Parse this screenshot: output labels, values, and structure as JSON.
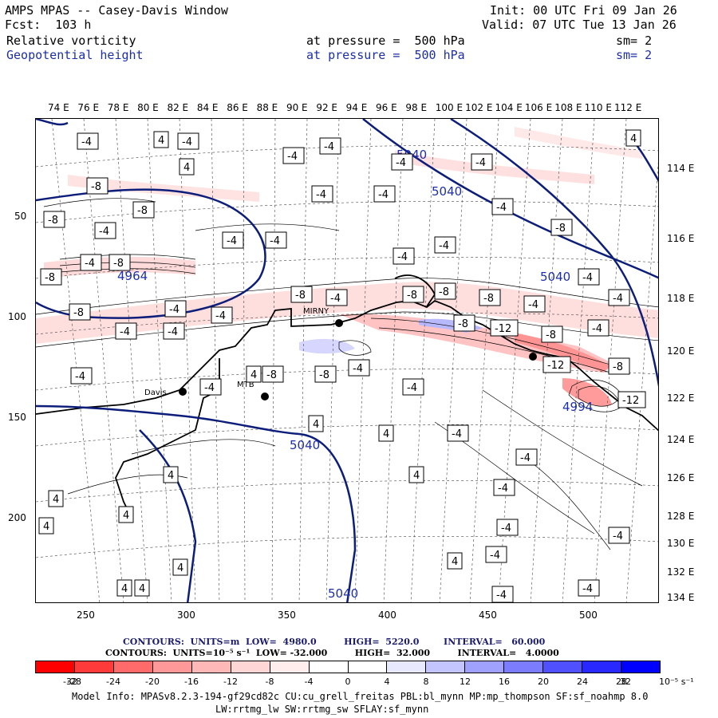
{
  "header": {
    "title_line": "AMPS MPAS -- Casey-Davis Window",
    "forecast_line": "Fcst:  103 h",
    "init_line": "Init: 00 UTC Fri 09 Jan 26",
    "valid_line": "Valid: 07 UTC Tue 13 Jan 26",
    "field1_name": "Relative vorticity",
    "field1_level": "at pressure =  500 hPa",
    "field1_sm": "sm= 2",
    "field2_name": "Geopotential height",
    "field2_level": "at pressure =  500 hPa",
    "field2_sm": "sm= 2"
  },
  "map": {
    "top_longitudes": [
      "74 E",
      "76 E",
      "78 E",
      "80 E",
      "82 E",
      "84 E",
      "86 E",
      "88 E",
      "90 E",
      "92 E",
      "94 E",
      "96 E",
      "98 E",
      "100 E",
      "102 E",
      "104 E",
      "106 E",
      "108 E",
      "110 E",
      "112 E"
    ],
    "right_longitudes": [
      "114 E",
      "116 E",
      "118 E",
      "120 E",
      "122 E",
      "124 E",
      "126 E",
      "128 E",
      "130 E",
      "132 E",
      "134 E"
    ],
    "left_grid_ticks": [
      "50",
      "100",
      "150",
      "200"
    ],
    "bottom_grid_ticks": [
      "250",
      "300",
      "350",
      "400",
      "450",
      "500"
    ],
    "station_labels": [
      "Davis",
      "MTB",
      "MIRNY"
    ],
    "height_labels": [
      "5040",
      "5040",
      "5040",
      "4964",
      "5040",
      "4994",
      "5040"
    ],
    "vorticity_labels": [
      "-4",
      "-8",
      "-12",
      "4"
    ]
  },
  "legend": {
    "contours_height": "CONTOURS:  UNITS=m  LOW=  4980.0         HIGH=  5220.0        INTERVAL=   60.000",
    "contours_vort": "CONTOURS:  UNITS=10⁻⁵ s⁻¹  LOW= -32.000         HIGH=  32.000         INTERVAL=   4.0000",
    "colorbar_colors": [
      "#ff0000",
      "#ff3a3a",
      "#ff6b6b",
      "#ff9999",
      "#ffb8b8",
      "#ffd6d6",
      "#ffecec",
      "#ffffff",
      "#ffffff",
      "#e8e8ff",
      "#c4c4ff",
      "#a0a0ff",
      "#7c7cff",
      "#5050ff",
      "#2828ff",
      "#0000ff"
    ],
    "colorbar_ticks": [
      "-32",
      "-28",
      "-24",
      "-20",
      "-16",
      "-12",
      "-8",
      "-4",
      "0",
      "4",
      "8",
      "12",
      "16",
      "20",
      "24",
      "28",
      "32"
    ],
    "colorbar_units": "10⁻⁵ s⁻¹"
  },
  "model_info": {
    "line1": "Model Info: MPASv8.2.3-194-gf29cd82c CU:cu_grell_freitas PBL:bl_mynn MP:mp_thompson SF:sf_noahmp 8.0",
    "line2": "LW:rrtmg_lw SW:rrtmg_sw SFLAY:sf_mynn"
  }
}
